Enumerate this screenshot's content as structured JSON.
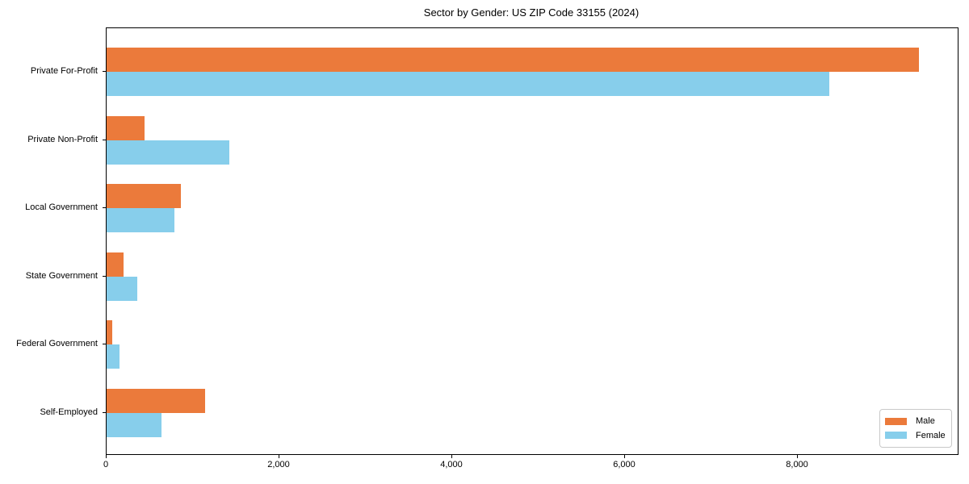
{
  "title": "Sector by Gender: US ZIP Code 33155 (2024)",
  "chart_data": {
    "type": "bar",
    "orientation": "horizontal",
    "title": "Sector by Gender: US ZIP Code 33155 (2024)",
    "categories": [
      "Private For-Profit",
      "Private Non-Profit",
      "Local Government",
      "State Government",
      "Federal Government",
      "Self-Employed"
    ],
    "series": [
      {
        "name": "Male",
        "color": "#eb7a3b",
        "values": [
          9400,
          440,
          855,
          195,
          65,
          1140
        ]
      },
      {
        "name": "Female",
        "color": "#87ceeb",
        "values": [
          8360,
          1420,
          780,
          355,
          145,
          635
        ]
      }
    ],
    "xlabel": "",
    "ylabel": "",
    "xlim": [
      0,
      9850
    ],
    "xticks": [
      0,
      2000,
      4000,
      6000,
      8000
    ],
    "xtick_labels": [
      "0",
      "2,000",
      "4,000",
      "6,000",
      "8,000"
    ],
    "grid": false,
    "legend_position": "lower right",
    "axis_color": "#000000",
    "background_color": "#ffffff"
  }
}
